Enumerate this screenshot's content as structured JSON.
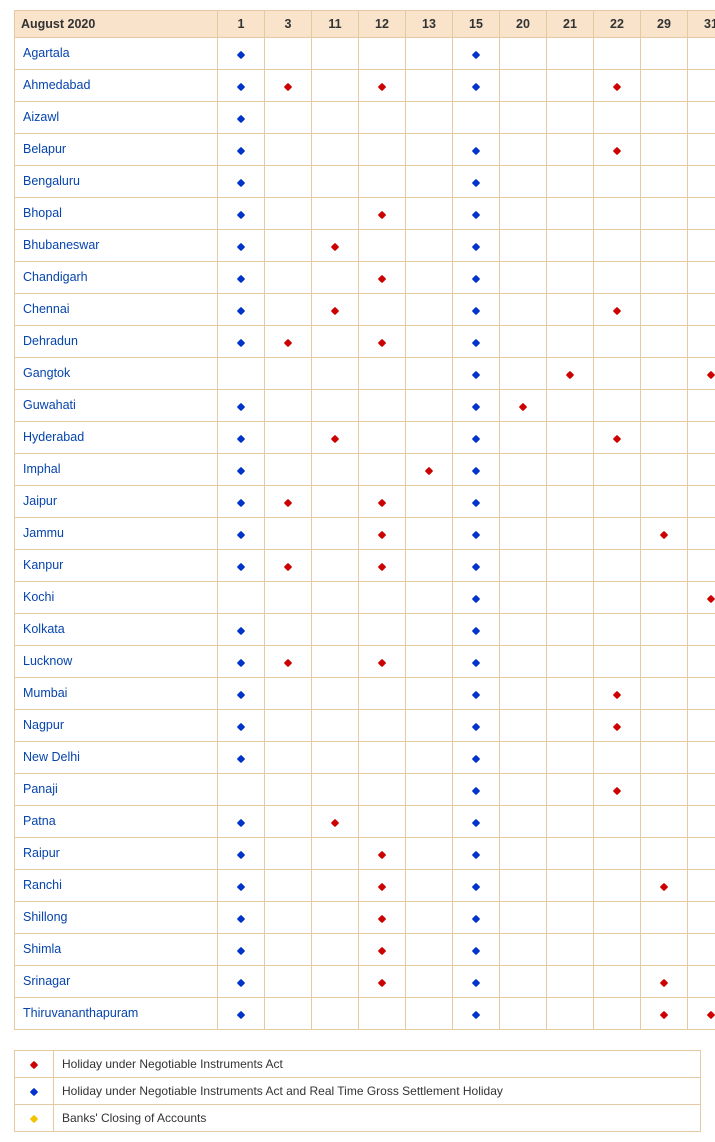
{
  "title": "August 2020",
  "days": [
    "1",
    "3",
    "11",
    "12",
    "13",
    "15",
    "20",
    "21",
    "22",
    "29",
    "31"
  ],
  "colors": {
    "blue": "#0033cc",
    "red": "#cc0000",
    "yellow": "#f2c200"
  },
  "holiday_types": {
    "r": "red",
    "b": "blue",
    "y": "yellow"
  },
  "rows": [
    {
      "city": "Agartala",
      "marks": {
        "1": "b",
        "15": "b"
      }
    },
    {
      "city": "Ahmedabad",
      "marks": {
        "1": "b",
        "3": "r",
        "12": "r",
        "15": "b",
        "22": "r"
      }
    },
    {
      "city": "Aizawl",
      "marks": {
        "1": "b"
      }
    },
    {
      "city": "Belapur",
      "marks": {
        "1": "b",
        "15": "b",
        "22": "r"
      }
    },
    {
      "city": "Bengaluru",
      "marks": {
        "1": "b",
        "15": "b"
      }
    },
    {
      "city": "Bhopal",
      "marks": {
        "1": "b",
        "12": "r",
        "15": "b"
      }
    },
    {
      "city": "Bhubaneswar",
      "marks": {
        "1": "b",
        "11": "r",
        "15": "b"
      }
    },
    {
      "city": "Chandigarh",
      "marks": {
        "1": "b",
        "12": "r",
        "15": "b"
      }
    },
    {
      "city": "Chennai",
      "marks": {
        "1": "b",
        "11": "r",
        "15": "b",
        "22": "r"
      }
    },
    {
      "city": "Dehradun",
      "marks": {
        "1": "b",
        "3": "r",
        "12": "r",
        "15": "b"
      }
    },
    {
      "city": "Gangtok",
      "marks": {
        "15": "b",
        "21": "r",
        "31": "r"
      }
    },
    {
      "city": "Guwahati",
      "marks": {
        "1": "b",
        "15": "b",
        "20": "r"
      }
    },
    {
      "city": "Hyderabad",
      "marks": {
        "1": "b",
        "11": "r",
        "15": "b",
        "22": "r"
      }
    },
    {
      "city": "Imphal",
      "marks": {
        "1": "b",
        "13": "r",
        "15": "b"
      }
    },
    {
      "city": "Jaipur",
      "marks": {
        "1": "b",
        "3": "r",
        "12": "r",
        "15": "b"
      }
    },
    {
      "city": "Jammu",
      "marks": {
        "1": "b",
        "12": "r",
        "15": "b",
        "29": "r"
      }
    },
    {
      "city": "Kanpur",
      "marks": {
        "1": "b",
        "3": "r",
        "12": "r",
        "15": "b"
      }
    },
    {
      "city": "Kochi",
      "marks": {
        "15": "b",
        "31": "r"
      }
    },
    {
      "city": "Kolkata",
      "marks": {
        "1": "b",
        "15": "b"
      }
    },
    {
      "city": "Lucknow",
      "marks": {
        "1": "b",
        "3": "r",
        "12": "r",
        "15": "b"
      }
    },
    {
      "city": "Mumbai",
      "marks": {
        "1": "b",
        "15": "b",
        "22": "r"
      }
    },
    {
      "city": "Nagpur",
      "marks": {
        "1": "b",
        "15": "b",
        "22": "r"
      }
    },
    {
      "city": "New Delhi",
      "marks": {
        "1": "b",
        "15": "b"
      }
    },
    {
      "city": "Panaji",
      "marks": {
        "15": "b",
        "22": "r"
      }
    },
    {
      "city": "Patna",
      "marks": {
        "1": "b",
        "11": "r",
        "15": "b"
      }
    },
    {
      "city": "Raipur",
      "marks": {
        "1": "b",
        "12": "r",
        "15": "b"
      }
    },
    {
      "city": "Ranchi",
      "marks": {
        "1": "b",
        "12": "r",
        "15": "b",
        "29": "r"
      }
    },
    {
      "city": "Shillong",
      "marks": {
        "1": "b",
        "12": "r",
        "15": "b"
      }
    },
    {
      "city": "Shimla",
      "marks": {
        "1": "b",
        "12": "r",
        "15": "b"
      }
    },
    {
      "city": "Srinagar",
      "marks": {
        "1": "b",
        "12": "r",
        "15": "b",
        "29": "r"
      }
    },
    {
      "city": "Thiruvananthapuram",
      "marks": {
        "1": "b",
        "15": "b",
        "29": "r",
        "31": "r"
      }
    }
  ],
  "legend": [
    {
      "type": "r",
      "label": "Holiday under Negotiable Instruments Act"
    },
    {
      "type": "b",
      "label": "Holiday under Negotiable Instruments Act and Real Time Gross Settlement Holiday"
    },
    {
      "type": "y",
      "label": "Banks' Closing of Accounts"
    }
  ]
}
